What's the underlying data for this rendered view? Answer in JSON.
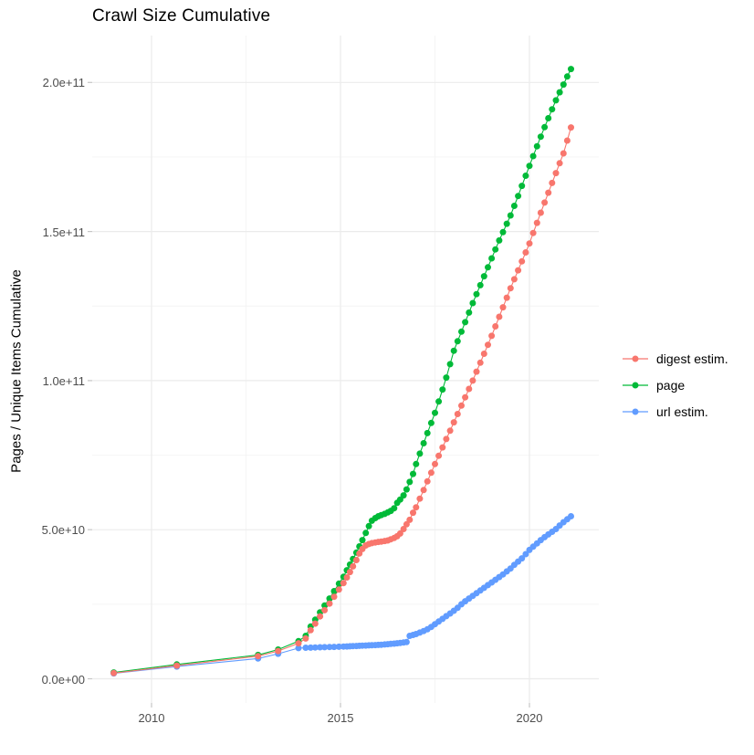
{
  "chart": {
    "title": "Crawl Size Cumulative",
    "y_axis_title": "Pages / Unique Items Cumulative"
  },
  "legend": {
    "position": "right",
    "items": [
      {
        "label": "digest estim.",
        "color": "#F8766D"
      },
      {
        "label": "page",
        "color": "#00BA38"
      },
      {
        "label": "url estim.",
        "color": "#619CFF"
      }
    ]
  },
  "chart_data": {
    "type": "line",
    "title": "Crawl Size Cumulative",
    "xlabel": "",
    "ylabel": "Pages / Unique Items Cumulative",
    "xlim": [
      2008.4,
      2021.8
    ],
    "ylim": [
      0,
      215000000000.0
    ],
    "grid": true,
    "legend_position": "right",
    "x_ticks": [
      {
        "value": 2010,
        "label": "2010"
      },
      {
        "value": 2015,
        "label": "2015"
      },
      {
        "value": 2020,
        "label": "2020"
      }
    ],
    "x_minor_ticks": [
      2012.5,
      2017.5
    ],
    "y_ticks": [
      {
        "value": 0,
        "label": "0.0e+00"
      },
      {
        "value": 50000000000.0,
        "label": "5.0e+10"
      },
      {
        "value": 100000000000.0,
        "label": "1.0e+11"
      },
      {
        "value": 150000000000.0,
        "label": "1.5e+11"
      },
      {
        "value": 200000000000.0,
        "label": "2.0e+11"
      }
    ],
    "y_minor_ticks": [
      25000000000.0,
      75000000000.0,
      125000000000.0,
      175000000000.0
    ],
    "style": {
      "major_grid_color": "#EBEBEB",
      "minor_grid_color": "#F4F4F4",
      "tick_mark_color": "#C6C6C6",
      "tick_label_color": "#4D4D4D"
    },
    "x": [
      2009.0,
      2010.67,
      2012.82,
      2013.35,
      2013.89,
      2014.08,
      2014.21,
      2014.33,
      2014.46,
      2014.58,
      2014.71,
      2014.83,
      2014.96,
      2015.08,
      2015.17,
      2015.25,
      2015.33,
      2015.42,
      2015.5,
      2015.58,
      2015.67,
      2015.75,
      2015.83,
      2015.92,
      2016.0,
      2016.08,
      2016.17,
      2016.25,
      2016.33,
      2016.42,
      2016.5,
      2016.58,
      2016.67,
      2016.75,
      2016.83,
      2016.92,
      2017.0,
      2017.1,
      2017.2,
      2017.3,
      2017.4,
      2017.5,
      2017.6,
      2017.7,
      2017.8,
      2017.9,
      2018.0,
      2018.1,
      2018.2,
      2018.3,
      2018.4,
      2018.5,
      2018.6,
      2018.7,
      2018.8,
      2018.9,
      2019.0,
      2019.1,
      2019.2,
      2019.3,
      2019.4,
      2019.5,
      2019.6,
      2019.7,
      2019.8,
      2019.9,
      2020.0,
      2020.1,
      2020.2,
      2020.3,
      2020.4,
      2020.5,
      2020.6,
      2020.7,
      2020.8,
      2020.9,
      2021.0,
      2021.1
    ],
    "series": [
      {
        "name": "digest estim.",
        "color": "#F8766D",
        "values": [
          1900000000.0,
          4400000000.0,
          7600000000.0,
          9300000000.0,
          11900000000.0,
          13500000000.0,
          16300000000.0,
          18500000000.0,
          20900000000.0,
          23000000000.0,
          25200000000.0,
          27500000000.0,
          29900000000.0,
          32100000000.0,
          34000000000.0,
          35800000000.0,
          37700000000.0,
          39800000000.0,
          42000000000.0,
          43500000000.0,
          44700000000.0,
          45200000000.0,
          45500000000.0,
          45700000000.0,
          45900000000.0,
          46000000000.0,
          46200000000.0,
          46400000000.0,
          46800000000.0,
          47200000000.0,
          47800000000.0,
          48700000000.0,
          50200000000.0,
          51800000000.0,
          53300000000.0,
          55700000000.0,
          57500000000.0,
          60400000000.0,
          63300000000.0,
          66200000000.0,
          69100000000.0,
          72000000000.0,
          74800000000.0,
          77600000000.0,
          80400000000.0,
          83200000000.0,
          86000000000.0,
          88800000000.0,
          91600000000.0,
          94400000000.0,
          97200000000.0,
          100000000000.0,
          103000000000.0,
          106000000000.0,
          109000000000.0,
          112000000000.0,
          115000000000.0,
          118200000000.0,
          121400000000.0,
          124600000000.0,
          127800000000.0,
          131000000000.0,
          134000000000.0,
          137000000000.0,
          140000000000.0,
          143000000000.0,
          146000000000.0,
          149500000000.0,
          152900000000.0,
          156300000000.0,
          159700000000.0,
          163000000000.0,
          166300000000.0,
          169600000000.0,
          172900000000.0,
          176200000000.0,
          180500000000.0,
          184900000000.0
        ]
      },
      {
        "name": "page",
        "color": "#00BA38",
        "values": [
          2100000000.0,
          4800000000.0,
          8000000000.0,
          9800000000.0,
          12600000000.0,
          14400000000.0,
          17500000000.0,
          19800000000.0,
          22300000000.0,
          24600000000.0,
          26900000000.0,
          29400000000.0,
          31900000000.0,
          34200000000.0,
          36400000000.0,
          38300000000.0,
          40200000000.0,
          42300000000.0,
          44400000000.0,
          46500000000.0,
          48900000000.0,
          51200000000.0,
          53000000000.0,
          53900000000.0,
          54500000000.0,
          54900000000.0,
          55300000000.0,
          55800000000.0,
          56300000000.0,
          57200000000.0,
          59000000000.0,
          60100000000.0,
          61500000000.0,
          63500000000.0,
          66000000000.0,
          68700000000.0,
          72000000000.0,
          75500000000.0,
          79000000000.0,
          82400000000.0,
          85800000000.0,
          89200000000.0,
          93000000000.0,
          97000000000.0,
          101000000000.0,
          105500000000.0,
          110000000000.0,
          113200000000.0,
          116400000000.0,
          119600000000.0,
          122800000000.0,
          126000000000.0,
          129000000000.0,
          132000000000.0,
          135000000000.0,
          138000000000.0,
          141000000000.0,
          144000000000.0,
          147000000000.0,
          149800000000.0,
          152600000000.0,
          155400000000.0,
          158600000000.0,
          161900000000.0,
          165300000000.0,
          168700000000.0,
          172000000000.0,
          175300000000.0,
          178600000000.0,
          181800000000.0,
          185000000000.0,
          188000000000.0,
          191000000000.0,
          194000000000.0,
          196700000000.0,
          199300000000.0,
          202000000000.0,
          204500000000.0
        ]
      },
      {
        "name": "url estim.",
        "color": "#619CFF",
        "values": [
          1800000000.0,
          4100000000.0,
          6800000000.0,
          8400000000.0,
          10300000000.0,
          10400000000.0,
          10450000000.0,
          10500000000.0,
          10550000000.0,
          10600000000.0,
          10650000000.0,
          10700000000.0,
          10750000000.0,
          10800000000.0,
          10850000000.0,
          10900000000.0,
          10950000000.0,
          11000000000.0,
          11050000000.0,
          11100000000.0,
          11150000000.0,
          11200000000.0,
          11250000000.0,
          11300000000.0,
          11350000000.0,
          11400000000.0,
          11500000000.0,
          11600000000.0,
          11700000000.0,
          11800000000.0,
          11900000000.0,
          12000000000.0,
          12150000000.0,
          12300000000.0,
          14400000000.0,
          14700000000.0,
          15000000000.0,
          15500000000.0,
          16000000000.0,
          16600000000.0,
          17400000000.0,
          18300000000.0,
          19200000000.0,
          20100000000.0,
          21000000000.0,
          21900000000.0,
          22800000000.0,
          23800000000.0,
          25000000000.0,
          26000000000.0,
          26900000000.0,
          27800000000.0,
          28700000000.0,
          29600000000.0,
          30500000000.0,
          31400000000.0,
          32300000000.0,
          33200000000.0,
          34100000000.0,
          35000000000.0,
          36000000000.0,
          37000000000.0,
          38200000000.0,
          39300000000.0,
          40400000000.0,
          41800000000.0,
          43200000000.0,
          44300000000.0,
          45400000000.0,
          46500000000.0,
          47500000000.0,
          48400000000.0,
          49300000000.0,
          50200000000.0,
          51400000000.0,
          52500000000.0,
          53500000000.0,
          54500000000.0
        ]
      }
    ],
    "draw_order": [
      1,
      2,
      0
    ]
  }
}
